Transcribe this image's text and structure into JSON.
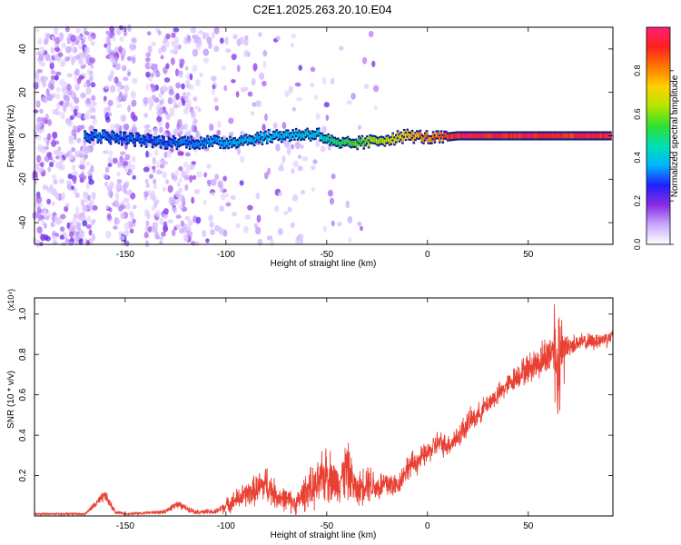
{
  "title": "C2E1.2025.263.20.10.E04",
  "colors": {
    "signal_line": "#e84033",
    "axis": "#000000",
    "colormap": [
      "#ffffff",
      "#c8a8ff",
      "#8a2be2",
      "#2020ff",
      "#00b4ff",
      "#00e0b0",
      "#30e030",
      "#b4e600",
      "#ffd000",
      "#ff7800",
      "#ff2020",
      "#ff2070"
    ]
  },
  "chart_data": [
    {
      "type": "heatmap",
      "name": "spectrogram",
      "xlabel": "Height of straight line (km)",
      "ylabel": "Frequency (Hz)",
      "xlim": [
        -195,
        92
      ],
      "ylim": [
        -50,
        50
      ],
      "xticks": [
        -150,
        -100,
        -50,
        0,
        50
      ],
      "yticks": [
        -40,
        -20,
        0,
        20,
        40
      ],
      "colorbar": {
        "label": "Normalized spectral amplitude",
        "range": [
          0,
          1
        ],
        "ticks": [
          "0.0",
          "0.2",
          "0.4",
          "0.6",
          "0.8"
        ]
      },
      "ridge": [
        {
          "x": -165,
          "f": 0,
          "amp": 0.35
        },
        {
          "x": -130,
          "f": -3,
          "amp": 0.33
        },
        {
          "x": -100,
          "f": -3,
          "amp": 0.4
        },
        {
          "x": -75,
          "f": 0,
          "amp": 0.42
        },
        {
          "x": -55,
          "f": 1,
          "amp": 0.45
        },
        {
          "x": -45,
          "f": -4,
          "amp": 0.55
        },
        {
          "x": -30,
          "f": -3,
          "amp": 0.65
        },
        {
          "x": -10,
          "f": 0,
          "amp": 0.8
        },
        {
          "x": 5,
          "f": -1,
          "amp": 0.9
        },
        {
          "x": 15,
          "f": 0,
          "amp": 1.0
        },
        {
          "x": 90,
          "f": 0,
          "amp": 1.0
        }
      ]
    },
    {
      "type": "line",
      "name": "snr",
      "xlabel": "Height of straight line (km)",
      "ylabel": "SNR (10 * v/v)",
      "yscale_label": "(x10⁴)",
      "xlim": [
        -195,
        92
      ],
      "ylim": [
        0,
        1.08
      ],
      "xticks": [
        -150,
        -100,
        -50,
        0,
        50
      ],
      "yticks": [
        0.2,
        0.4,
        0.6,
        0.8,
        1.0
      ],
      "series": [
        {
          "name": "SNR",
          "x": [
            -195,
            -170,
            -160,
            -155,
            -150,
            -130,
            -125,
            -115,
            -105,
            -95,
            -85,
            -80,
            -75,
            -65,
            -60,
            -55,
            -50,
            -45,
            -40,
            -35,
            -30,
            -25,
            -20,
            -15,
            -10,
            -5,
            0,
            5,
            10,
            15,
            20,
            25,
            30,
            35,
            40,
            45,
            50,
            55,
            60,
            63,
            65,
            67,
            70,
            75,
            80,
            85,
            92
          ],
          "values": [
            0.01,
            0.01,
            0.1,
            0.02,
            0.01,
            0.02,
            0.06,
            0.02,
            0.02,
            0.08,
            0.13,
            0.16,
            0.1,
            0.06,
            0.13,
            0.14,
            0.22,
            0.16,
            0.23,
            0.12,
            0.18,
            0.14,
            0.16,
            0.15,
            0.24,
            0.27,
            0.31,
            0.36,
            0.35,
            0.39,
            0.46,
            0.5,
            0.56,
            0.6,
            0.65,
            0.7,
            0.73,
            0.76,
            0.8,
            0.85,
            0.68,
            0.84,
            0.84,
            0.86,
            0.86,
            0.87,
            0.89
          ],
          "noise": [
            0.005,
            0.005,
            0.03,
            0.01,
            0.005,
            0.01,
            0.02,
            0.01,
            0.015,
            0.05,
            0.07,
            0.09,
            0.06,
            0.05,
            0.09,
            0.1,
            0.14,
            0.09,
            0.14,
            0.07,
            0.1,
            0.07,
            0.08,
            0.05,
            0.06,
            0.06,
            0.05,
            0.06,
            0.05,
            0.06,
            0.06,
            0.05,
            0.05,
            0.05,
            0.05,
            0.06,
            0.07,
            0.08,
            0.1,
            0.12,
            0.16,
            0.08,
            0.05,
            0.04,
            0.04,
            0.04,
            0.04
          ]
        }
      ]
    }
  ]
}
